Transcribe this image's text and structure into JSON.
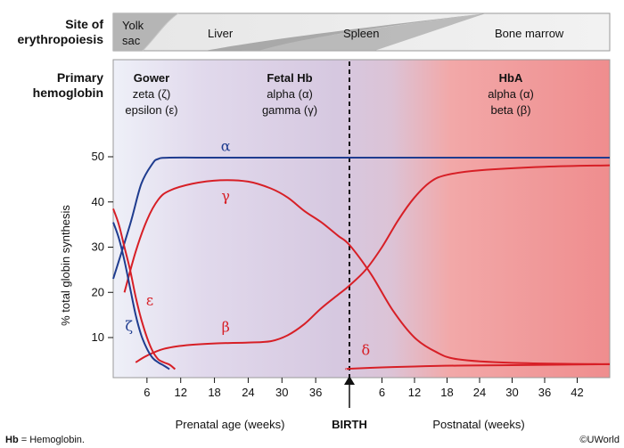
{
  "header": {
    "site_label_line1": "Site of",
    "site_label_line2": "erythropoiesis",
    "sites": [
      {
        "name_line1": "Yolk",
        "name_line2": "sac"
      },
      {
        "name_line1": "Liver",
        "name_line2": ""
      },
      {
        "name_line1": "Spleen",
        "name_line2": ""
      },
      {
        "name_line1": "Bone marrow",
        "name_line2": ""
      }
    ],
    "primary_label_line1": "Primary",
    "primary_label_line2": "hemoglobin",
    "hemoglobins": [
      {
        "title": "Gower",
        "line1": "zeta (ζ)",
        "line2": "epsilon (ε)"
      },
      {
        "title": "Fetal Hb",
        "line1": "alpha (α)",
        "line2": "gamma (γ)"
      },
      {
        "title": "HbA",
        "line1": "alpha (α)",
        "line2": "beta (β)"
      }
    ]
  },
  "chart_data": {
    "type": "line",
    "ylabel": "% total globin synthesis",
    "ylim": [
      3,
      53
    ],
    "y_ticks": [
      10,
      20,
      30,
      40,
      50
    ],
    "prenatal_ticks": [
      "6",
      "12",
      "18",
      "24",
      "30",
      "36"
    ],
    "postnatal_ticks": [
      "6",
      "12",
      "18",
      "24",
      "30",
      "36",
      "42"
    ],
    "x_label_prenatal": "Prenatal age (weeks)",
    "x_label_birth": "BIRTH",
    "x_label_postnatal": "Postnatal (weeks)",
    "x_range_note": "prenatal weeks 0-41, then postnatal weeks 0-48",
    "series": [
      {
        "name": "α",
        "color": "#1f3c8f",
        "points": [
          [
            "pre",
            0,
            23
          ],
          [
            "pre",
            3,
            35
          ],
          [
            "pre",
            5,
            44
          ],
          [
            "pre",
            7,
            48.5
          ],
          [
            "pre",
            8,
            49.5
          ],
          [
            "pre",
            10,
            49.8
          ],
          [
            "pre",
            20,
            49.8
          ],
          [
            "post",
            0,
            49.8
          ],
          [
            "post",
            48,
            49.8
          ]
        ]
      },
      {
        "name": "γ",
        "color": "#d71f26",
        "points": [
          [
            "pre",
            2,
            20
          ],
          [
            "pre",
            4,
            29
          ],
          [
            "pre",
            6,
            36
          ],
          [
            "pre",
            8,
            40.5
          ],
          [
            "pre",
            10,
            42.5
          ],
          [
            "pre",
            14,
            44
          ],
          [
            "pre",
            19,
            44.8
          ],
          [
            "pre",
            24,
            44.5
          ],
          [
            "pre",
            28,
            43
          ],
          [
            "pre",
            31,
            41
          ],
          [
            "pre",
            34,
            38
          ],
          [
            "pre",
            37,
            35.5
          ],
          [
            "pre",
            40,
            32.5
          ],
          [
            "post",
            0,
            30.5
          ],
          [
            "post",
            4,
            24
          ],
          [
            "post",
            8,
            16
          ],
          [
            "post",
            12,
            10
          ],
          [
            "post",
            16,
            6.8
          ],
          [
            "post",
            20,
            5.2
          ],
          [
            "post",
            30,
            4.4
          ],
          [
            "post",
            48,
            4.1
          ]
        ]
      },
      {
        "name": "β",
        "color": "#d71f26",
        "points": [
          [
            "pre",
            4,
            4.5
          ],
          [
            "pre",
            6,
            6
          ],
          [
            "pre",
            9,
            7.5
          ],
          [
            "pre",
            13,
            8.3
          ],
          [
            "pre",
            18,
            8.7
          ],
          [
            "pre",
            24,
            8.9
          ],
          [
            "pre",
            28,
            9.2
          ],
          [
            "pre",
            31,
            10.5
          ],
          [
            "pre",
            34,
            13
          ],
          [
            "pre",
            37,
            16.5
          ],
          [
            "pre",
            40,
            19.5
          ],
          [
            "post",
            0,
            21.5
          ],
          [
            "post",
            3,
            25
          ],
          [
            "post",
            6,
            30
          ],
          [
            "post",
            9,
            36
          ],
          [
            "post",
            12,
            41
          ],
          [
            "post",
            15,
            44.5
          ],
          [
            "post",
            18,
            46
          ],
          [
            "post",
            24,
            47
          ],
          [
            "post",
            36,
            47.8
          ],
          [
            "post",
            48,
            48.1
          ]
        ]
      },
      {
        "name": "ε",
        "color": "#d71f26",
        "points": [
          [
            "pre",
            0,
            38.5
          ],
          [
            "pre",
            1,
            35
          ],
          [
            "pre",
            2,
            30
          ],
          [
            "pre",
            3,
            25
          ],
          [
            "pre",
            4,
            19
          ],
          [
            "pre",
            5,
            14
          ],
          [
            "pre",
            6,
            10
          ],
          [
            "pre",
            7,
            7
          ],
          [
            "pre",
            8,
            5.2
          ],
          [
            "pre",
            9,
            4.5
          ],
          [
            "pre",
            10,
            4
          ],
          [
            "pre",
            11,
            3
          ]
        ]
      },
      {
        "name": "ζ",
        "color": "#1f3c8f",
        "points": [
          [
            "pre",
            0,
            35.5
          ],
          [
            "pre",
            1,
            32
          ],
          [
            "pre",
            2,
            27
          ],
          [
            "pre",
            3,
            21
          ],
          [
            "pre",
            4,
            15
          ],
          [
            "pre",
            5,
            10.5
          ],
          [
            "pre",
            6,
            7.5
          ],
          [
            "pre",
            7,
            5.5
          ],
          [
            "pre",
            8,
            4.5
          ],
          [
            "pre",
            9,
            3.8
          ],
          [
            "pre",
            10,
            3
          ]
        ]
      },
      {
        "name": "δ",
        "color": "#d71f26",
        "points": [
          [
            "pre",
            41.5,
            3
          ],
          [
            "post",
            0,
            3.1
          ],
          [
            "post",
            6,
            3.4
          ],
          [
            "post",
            12,
            3.6
          ],
          [
            "post",
            20,
            3.8
          ],
          [
            "post",
            30,
            3.9
          ],
          [
            "post",
            48,
            4.1
          ]
        ]
      }
    ],
    "curve_labels": [
      "α",
      "γ",
      "β",
      "ε",
      "ζ",
      "δ"
    ]
  },
  "colors": {
    "alpha_zeta_blue": "#1f3c8f",
    "red_curves": "#d71f26",
    "prenatal_bg": "#d6c8e0",
    "postnatal_bg": "#f08f90"
  },
  "footer": {
    "abbr_bold": "Hb",
    "abbr_text": " = Hemoglobin.",
    "copyright": "©UWorld"
  }
}
